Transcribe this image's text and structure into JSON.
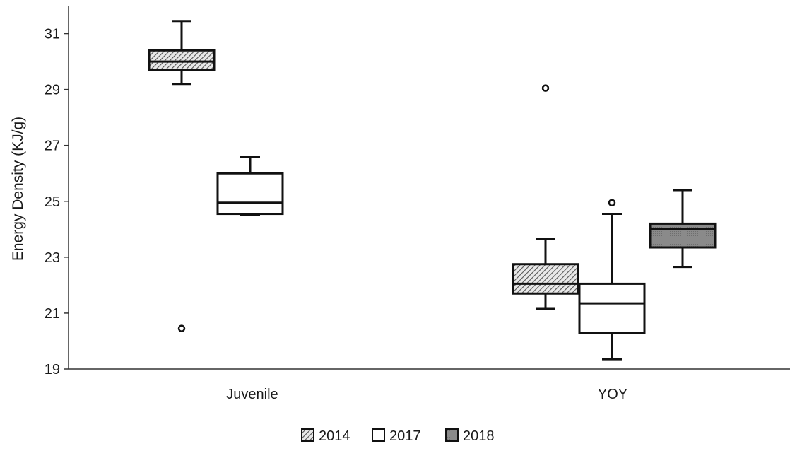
{
  "chart_data": {
    "type": "box",
    "title": "",
    "xlabel": "",
    "ylabel": "Energy Density (KJ/g)",
    "ylim": [
      19,
      32
    ],
    "yticks": [
      19,
      21,
      23,
      25,
      27,
      29,
      31
    ],
    "grid": false,
    "legend_position": "bottom-center",
    "categories": [
      "Juvenile",
      "YOY"
    ],
    "series": [
      {
        "name": "2014",
        "fill": "hatch",
        "color": "#9a9a9a",
        "boxes": [
          {
            "category": "Juvenile",
            "whisker_low": 29.2,
            "q1": 29.7,
            "median": 30.0,
            "q3": 30.4,
            "whisker_high": 31.45,
            "outliers": [
              20.45
            ]
          },
          {
            "category": "YOY",
            "whisker_low": 21.15,
            "q1": 21.7,
            "median": 22.05,
            "q3": 22.75,
            "whisker_high": 23.65,
            "outliers": [
              29.05
            ]
          }
        ]
      },
      {
        "name": "2017",
        "fill": "white",
        "color": "#ffffff",
        "boxes": [
          {
            "category": "Juvenile",
            "whisker_low": 24.5,
            "q1": 24.55,
            "median": 24.95,
            "q3": 26.0,
            "whisker_high": 26.6,
            "outliers": []
          },
          {
            "category": "YOY",
            "whisker_low": 19.35,
            "q1": 20.3,
            "median": 21.35,
            "q3": 22.05,
            "whisker_high": 24.55,
            "outliers": [
              24.95
            ]
          }
        ]
      },
      {
        "name": "2018",
        "fill": "solid",
        "color": "#8c8c8c",
        "boxes": [
          {
            "category": "YOY",
            "whisker_low": 22.65,
            "q1": 23.35,
            "median": 24.0,
            "q3": 24.2,
            "whisker_high": 25.4,
            "outliers": []
          }
        ]
      }
    ]
  }
}
